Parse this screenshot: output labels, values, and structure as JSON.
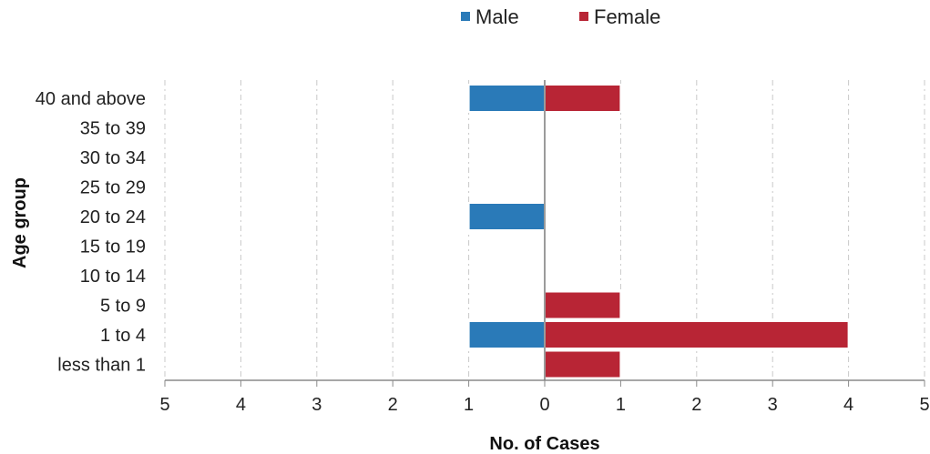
{
  "chart_data": {
    "type": "bar",
    "orientation": "horizontal",
    "layout": "population-pyramid",
    "title": "",
    "xlabel": "No. of Cases",
    "ylabel": "Age group",
    "categories": [
      "40 and above",
      "35 to 39",
      "30 to 34",
      "25 to 29",
      "20 to 24",
      "15 to 19",
      "10 to 14",
      "5 to 9",
      "1 to 4",
      "less than 1"
    ],
    "series": [
      {
        "name": "Male",
        "side": "left",
        "color": "#2a7ab8",
        "values": [
          1,
          0,
          0,
          0,
          1,
          0,
          0,
          0,
          1,
          0
        ]
      },
      {
        "name": "Female",
        "side": "right",
        "color": "#b82535",
        "values": [
          1,
          0,
          0,
          0,
          0,
          0,
          0,
          1,
          4,
          1
        ]
      }
    ],
    "xlim": [
      -5,
      5
    ],
    "xticks": [
      -5,
      -4,
      -3,
      -2,
      -1,
      0,
      1,
      2,
      3,
      4,
      5
    ],
    "xtick_labels": [
      "5",
      "4",
      "3",
      "2",
      "1",
      "0",
      "1",
      "2",
      "3",
      "4",
      "5"
    ],
    "grid": "vertical dashed",
    "legend": "top-center"
  }
}
